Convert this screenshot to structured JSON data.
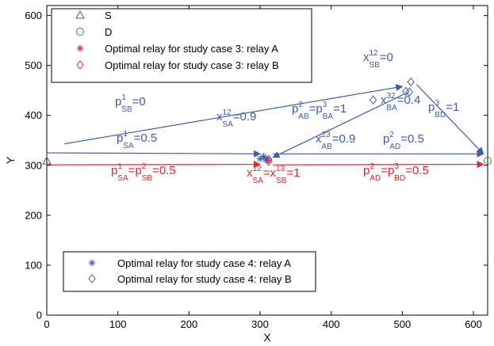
{
  "chart_data": {
    "type": "scatter",
    "xlabel": "X",
    "ylabel": "Y",
    "xlim": [
      0,
      620
    ],
    "ylim": [
      0,
      620
    ],
    "xticks": [
      0,
      100,
      200,
      300,
      400,
      500,
      600
    ],
    "yticks": [
      0,
      100,
      200,
      300,
      400,
      500,
      600
    ],
    "grid": false,
    "colors": {
      "blue": "#3a5dad",
      "red": "#e8262c",
      "green": "#2f8f3a"
    },
    "legends": [
      {
        "placement": "top-left",
        "entries": [
          {
            "marker": "triangle",
            "color": "#3a5dad",
            "label": "S"
          },
          {
            "marker": "circle",
            "color": "#2f8f3a",
            "label": "D"
          },
          {
            "marker": "asterisk",
            "color": "#e8262c",
            "label": "Optimal relay for study case 3: relay A"
          },
          {
            "marker": "diamond",
            "color": "#e8262c",
            "label": "Optimal relay for study case 3: relay B"
          }
        ]
      },
      {
        "placement": "bottom-left",
        "entries": [
          {
            "marker": "asterisk",
            "color": "#3a5dad",
            "label": "Optimal relay for study case 4: relay A"
          },
          {
            "marker": "diamond",
            "color": "#3a5dad",
            "label": "Optimal relay for study case 4: relay B"
          }
        ]
      }
    ],
    "series": [
      {
        "name": "S",
        "marker": "triangle",
        "color": "#3a5dad",
        "points": [
          [
            0,
            309
          ]
        ]
      },
      {
        "name": "D",
        "marker": "circle",
        "color": "#2f8f3a",
        "points": [
          [
            620,
            309
          ]
        ]
      },
      {
        "name": "Optimal relay for study case 3: relay A",
        "marker": "asterisk",
        "color": "#e8262c",
        "points": [
          [
            310,
            310
          ]
        ]
      },
      {
        "name": "Optimal relay for study case 3: relay B",
        "marker": "diamond",
        "color": "#e8262c",
        "points": [
          [
            312,
            308
          ]
        ]
      },
      {
        "name": "Optimal relay for study case 4: relay A",
        "marker": "asterisk",
        "color": "#3a5dad",
        "points": [
          [
            300,
            313
          ],
          [
            305,
            318
          ],
          [
            308,
            312
          ]
        ]
      },
      {
        "name": "Optimal relay for study case 4: relay B",
        "marker": "diamond",
        "color": "#3a5dad",
        "points": [
          [
            312,
            312
          ],
          [
            459,
            431
          ],
          [
            505,
            448
          ],
          [
            510,
            447
          ],
          [
            512,
            467
          ]
        ]
      }
    ],
    "arrows": [
      {
        "color": "#3a5dad",
        "from": [
          25,
          343
        ],
        "to": [
          500,
          458
        ]
      },
      {
        "color": "#3a5dad",
        "from": [
          520,
          462
        ],
        "to": [
          614,
          323
        ]
      },
      {
        "color": "#3a5dad",
        "from": [
          0,
          325
        ],
        "to": [
          300,
          323
        ]
      },
      {
        "color": "#3a5dad",
        "from": [
          506,
          445
        ],
        "to": [
          318,
          316
        ]
      },
      {
        "color": "#3a5dad",
        "from": [
          318,
          323
        ],
        "to": [
          614,
          323
        ]
      },
      {
        "color": "#e8262c",
        "from": [
          0,
          301
        ],
        "to": [
          300,
          302
        ]
      },
      {
        "color": "#e8262c",
        "from": [
          318,
          301
        ],
        "to": [
          614,
          302
        ]
      }
    ],
    "annotations": [
      {
        "color": "#3a5dad",
        "parts": [
          {
            "t": "p"
          },
          {
            "t": "1",
            "sup": true
          },
          {
            "t": "SB",
            "sub": true
          },
          {
            "t": "=0"
          }
        ]
      },
      {
        "color": "#3a5dad",
        "parts": [
          {
            "t": "p"
          },
          {
            "t": "1",
            "sup": true
          },
          {
            "t": "SA",
            "sub": true
          },
          {
            "t": "=0.5"
          }
        ]
      },
      {
        "color": "#3a5dad",
        "parts": [
          {
            "t": "x"
          },
          {
            "t": "12",
            "sup": true
          },
          {
            "t": "SA",
            "sub": true
          },
          {
            "t": "=0.9"
          }
        ]
      },
      {
        "color": "#3a5dad",
        "parts": [
          {
            "t": "p"
          },
          {
            "t": "2",
            "sup": true
          },
          {
            "t": "AB",
            "sub": true
          },
          {
            "t": "=p"
          },
          {
            "t": "3",
            "sup": true
          },
          {
            "t": "BA",
            "sub": true
          },
          {
            "t": "=1"
          }
        ]
      },
      {
        "color": "#3a5dad",
        "parts": [
          {
            "t": "x"
          },
          {
            "t": "12",
            "sup": true
          },
          {
            "t": "SB",
            "sub": true
          },
          {
            "t": "=0"
          }
        ]
      },
      {
        "color": "#3a5dad",
        "parts": [
          {
            "t": "p"
          },
          {
            "t": "3",
            "sup": true
          },
          {
            "t": "BD",
            "sub": true
          },
          {
            "t": "=1"
          }
        ]
      },
      {
        "color": "#3a5dad",
        "parts": [
          {
            "t": "x"
          },
          {
            "t": "32",
            "sup": true
          },
          {
            "t": "BA",
            "sub": true
          },
          {
            "t": "=0.4"
          }
        ]
      },
      {
        "color": "#3a5dad",
        "parts": [
          {
            "t": "x"
          },
          {
            "t": "23",
            "sup": true
          },
          {
            "t": "AB",
            "sub": true
          },
          {
            "t": "=0.9"
          }
        ]
      },
      {
        "color": "#3a5dad",
        "parts": [
          {
            "t": "p"
          },
          {
            "t": "2",
            "sup": true
          },
          {
            "t": "AD",
            "sub": true
          },
          {
            "t": "=0.5"
          }
        ]
      },
      {
        "color": "#e8262c",
        "parts": [
          {
            "t": "p"
          },
          {
            "t": "1",
            "sup": true
          },
          {
            "t": "SA",
            "sub": true
          },
          {
            "t": "=p"
          },
          {
            "t": "2",
            "sup": true
          },
          {
            "t": "SB",
            "sub": true
          },
          {
            "t": "=0.5"
          }
        ]
      },
      {
        "color": "#e8262c",
        "parts": [
          {
            "t": "x"
          },
          {
            "t": "12",
            "sup": true
          },
          {
            "t": "SA",
            "sub": true
          },
          {
            "t": "=x"
          },
          {
            "t": "13",
            "sup": true
          },
          {
            "t": "SB",
            "sub": true
          },
          {
            "t": "=1"
          }
        ]
      },
      {
        "color": "#e8262c",
        "parts": [
          {
            "t": "p"
          },
          {
            "t": "2",
            "sup": true
          },
          {
            "t": "AD",
            "sub": true
          },
          {
            "t": "=p"
          },
          {
            "t": "3",
            "sup": true
          },
          {
            "t": "BD",
            "sub": true
          },
          {
            "t": "=0.5"
          }
        ]
      }
    ]
  }
}
